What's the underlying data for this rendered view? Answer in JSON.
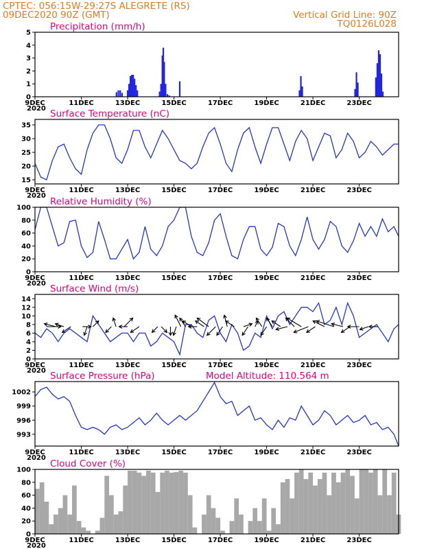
{
  "header": {
    "station": "CPTEC:  056:15W-29:27S  ALEGRETE (RS)",
    "run": "09DEC2020 90Z (GMT)",
    "vgrid": "Vertical Grid Line: 90Z",
    "code": "TQ0126L028"
  },
  "colors": {
    "header": "#e87a1e",
    "title": "#e6007e",
    "series": "#2233dd",
    "bars": "#1f24e8",
    "cloud": "#a8a8a8"
  },
  "x_tick_labels": [
    "9DEC",
    "11DEC",
    "13DEC",
    "15DEC",
    "17DEC",
    "19DEC",
    "21DEC",
    "23DEC"
  ],
  "x_stub_label": "2020",
  "chart_data": [
    {
      "type": "bar",
      "title": "Precipitation (mm/h)",
      "xlabel": "",
      "ylabel": "",
      "x_range_days": [
        9,
        24.7
      ],
      "ylim": [
        0,
        5
      ],
      "yticks": [
        0,
        1,
        2,
        3,
        4,
        5
      ],
      "points": [
        [
          12.52,
          0.35
        ],
        [
          12.6,
          0.5
        ],
        [
          12.68,
          0.5
        ],
        [
          12.76,
          0.3
        ],
        [
          13.0,
          0.5
        ],
        [
          13.06,
          1.0
        ],
        [
          13.12,
          1.6
        ],
        [
          13.18,
          1.7
        ],
        [
          13.24,
          1.7
        ],
        [
          13.3,
          1.4
        ],
        [
          13.36,
          0.9
        ],
        [
          13.42,
          0.5
        ],
        [
          14.38,
          0.4
        ],
        [
          14.44,
          1.0
        ],
        [
          14.5,
          3.2
        ],
        [
          14.54,
          3.8
        ],
        [
          14.58,
          2.7
        ],
        [
          14.64,
          1.0
        ],
        [
          14.72,
          0.2
        ],
        [
          14.8,
          0.1
        ],
        [
          15.25,
          1.2
        ],
        [
          20.42,
          0.5
        ],
        [
          20.48,
          1.6
        ],
        [
          20.54,
          0.8
        ],
        [
          22.82,
          0.6
        ],
        [
          22.88,
          1.9
        ],
        [
          22.94,
          1.1
        ],
        [
          23.72,
          1.5
        ],
        [
          23.78,
          2.6
        ],
        [
          23.84,
          3.6
        ],
        [
          23.9,
          3.3
        ],
        [
          23.96,
          1.8
        ],
        [
          24.02,
          0.4
        ]
      ]
    },
    {
      "type": "line",
      "title": "Surface Temperature (nC)",
      "xlabel": "",
      "ylabel": "",
      "x_range_days": [
        9,
        24.7
      ],
      "ylim": [
        13.5,
        37
      ],
      "yticks": [
        15,
        20,
        25,
        30,
        35
      ],
      "x": [
        9.0,
        9.25,
        9.5,
        9.75,
        10.0,
        10.25,
        10.5,
        10.75,
        11.0,
        11.25,
        11.5,
        11.75,
        12.0,
        12.25,
        12.5,
        12.75,
        13.0,
        13.25,
        13.5,
        13.75,
        14.0,
        14.25,
        14.5,
        14.75,
        15.0,
        15.25,
        15.5,
        15.75,
        16.0,
        16.25,
        16.5,
        16.75,
        17.0,
        17.25,
        17.5,
        17.75,
        18.0,
        18.25,
        18.5,
        18.75,
        19.0,
        19.25,
        19.5,
        19.75,
        20.0,
        20.25,
        20.5,
        20.75,
        21.0,
        21.25,
        21.5,
        21.75,
        22.0,
        22.25,
        22.5,
        22.75,
        23.0,
        23.25,
        23.5,
        23.75,
        24.0,
        24.25,
        24.5,
        24.7
      ],
      "y": [
        21,
        16,
        15,
        22,
        27,
        28,
        23,
        19,
        17,
        26,
        32,
        35,
        35,
        30,
        23,
        21,
        26,
        33,
        33,
        27,
        23,
        28,
        33,
        30,
        26,
        22,
        21,
        19,
        21,
        27,
        32,
        34,
        28,
        21,
        18,
        26,
        32,
        34,
        27,
        21,
        28,
        34,
        34,
        28,
        22,
        29,
        33,
        30,
        22,
        27,
        32,
        31,
        23,
        26,
        32,
        29,
        23,
        25,
        29,
        27,
        24,
        26,
        28,
        28
      ]
    },
    {
      "type": "line",
      "title": "Relative Humidity (%)",
      "xlabel": "",
      "ylabel": "",
      "x_range_days": [
        9,
        24.7
      ],
      "ylim": [
        0,
        100
      ],
      "yticks": [
        0,
        20,
        40,
        60,
        80,
        100
      ],
      "x": [
        9.0,
        9.25,
        9.5,
        9.75,
        10.0,
        10.25,
        10.5,
        10.75,
        11.0,
        11.25,
        11.5,
        11.75,
        12.0,
        12.25,
        12.5,
        12.75,
        13.0,
        13.25,
        13.5,
        13.75,
        14.0,
        14.25,
        14.5,
        14.75,
        15.0,
        15.25,
        15.5,
        15.75,
        16.0,
        16.25,
        16.5,
        16.75,
        17.0,
        17.25,
        17.5,
        17.75,
        18.0,
        18.25,
        18.5,
        18.75,
        19.0,
        19.25,
        19.5,
        19.75,
        20.0,
        20.25,
        20.5,
        20.75,
        21.0,
        21.25,
        21.5,
        21.75,
        22.0,
        22.25,
        22.5,
        22.75,
        23.0,
        23.25,
        23.5,
        23.75,
        24.0,
        24.25,
        24.5,
        24.7
      ],
      "y": [
        65,
        100,
        100,
        70,
        40,
        45,
        78,
        80,
        40,
        22,
        30,
        78,
        50,
        20,
        20,
        35,
        50,
        20,
        30,
        70,
        35,
        25,
        40,
        70,
        80,
        100,
        100,
        55,
        30,
        25,
        45,
        80,
        90,
        55,
        25,
        20,
        50,
        70,
        70,
        35,
        25,
        38,
        75,
        70,
        40,
        25,
        50,
        85,
        50,
        35,
        50,
        78,
        70,
        40,
        30,
        48,
        75,
        55,
        70,
        55,
        82,
        62,
        70,
        55
      ]
    },
    {
      "type": "line",
      "title": "Surface Wind (m/s)",
      "xlabel": "",
      "ylabel": "",
      "x_range_days": [
        9,
        24.7
      ],
      "ylim": [
        0,
        15
      ],
      "yticks": [
        0,
        2,
        4,
        6,
        8,
        10,
        12,
        14
      ],
      "x": [
        9.0,
        9.25,
        9.5,
        9.75,
        10.0,
        10.25,
        10.5,
        10.75,
        11.0,
        11.25,
        11.5,
        11.75,
        12.0,
        12.25,
        12.5,
        12.75,
        13.0,
        13.25,
        13.5,
        13.75,
        14.0,
        14.25,
        14.5,
        14.75,
        15.0,
        15.25,
        15.5,
        15.75,
        16.0,
        16.25,
        16.5,
        16.75,
        17.0,
        17.25,
        17.5,
        17.75,
        18.0,
        18.25,
        18.5,
        18.75,
        19.0,
        19.25,
        19.5,
        19.75,
        20.0,
        20.25,
        20.5,
        20.75,
        21.0,
        21.25,
        21.5,
        21.75,
        22.0,
        22.25,
        22.5,
        22.75,
        23.0,
        23.25,
        23.5,
        23.75,
        24.0,
        24.25,
        24.5,
        24.7
      ],
      "y": [
        6,
        5,
        7,
        6,
        4,
        6,
        7,
        6,
        5,
        4,
        10,
        8,
        6,
        4,
        5,
        6,
        6,
        4,
        6,
        6,
        3,
        4,
        6,
        5,
        4,
        1,
        8,
        8,
        6,
        5,
        9,
        10,
        6,
        4,
        8,
        6,
        2,
        3,
        6,
        5,
        10,
        7,
        10,
        11,
        8,
        10,
        12,
        12,
        11,
        13,
        8,
        9,
        12,
        8,
        13,
        10,
        5,
        6,
        7,
        8,
        6,
        4,
        7,
        8
      ]
    },
    {
      "type": "line",
      "title": "Surface Pressure (hPa)",
      "xlabel": "",
      "ylabel": "",
      "annotation": "Model Altitude: 110.564 m",
      "x_range_days": [
        9,
        24.7
      ],
      "ylim": [
        990.5,
        1004.2
      ],
      "yticks": [
        993,
        996,
        999,
        1002
      ],
      "x": [
        9.0,
        9.25,
        9.5,
        9.75,
        10.0,
        10.25,
        10.5,
        10.75,
        11.0,
        11.25,
        11.5,
        11.75,
        12.0,
        12.25,
        12.5,
        12.75,
        13.0,
        13.25,
        13.5,
        13.75,
        14.0,
        14.25,
        14.5,
        14.75,
        15.0,
        15.25,
        15.5,
        15.75,
        16.0,
        16.25,
        16.5,
        16.75,
        17.0,
        17.25,
        17.5,
        17.75,
        18.0,
        18.25,
        18.5,
        18.75,
        19.0,
        19.25,
        19.5,
        19.75,
        20.0,
        20.25,
        20.5,
        20.75,
        21.0,
        21.25,
        21.5,
        21.75,
        22.0,
        22.25,
        22.5,
        22.75,
        23.0,
        23.25,
        23.5,
        23.75,
        24.0,
        24.25,
        24.5,
        24.7
      ],
      "y": [
        1001,
        1002.5,
        1003,
        1001.5,
        1000.5,
        1001,
        1000,
        997,
        994.5,
        994,
        994.5,
        994,
        993,
        994.5,
        995,
        994,
        994.5,
        995.5,
        996.5,
        995,
        996,
        997.5,
        996,
        995,
        996,
        997,
        996,
        997,
        998,
        1000,
        1002,
        1004,
        1001,
        999.5,
        1000,
        997,
        998,
        999,
        996,
        996.5,
        995,
        994,
        996,
        994.5,
        996.5,
        996,
        999,
        997,
        995,
        996,
        998,
        997,
        995,
        996,
        997,
        995.5,
        996,
        997,
        995,
        995.5,
        994,
        994.5,
        993,
        990.5
      ]
    },
    {
      "type": "area",
      "title": "Cloud Cover (%)",
      "xlabel": "",
      "ylabel": "",
      "x_range_days": [
        9,
        24.7
      ],
      "ylim": [
        0,
        100
      ],
      "yticks": [
        0,
        20,
        40,
        60,
        80,
        100
      ],
      "x": [
        9.0,
        9.2,
        9.4,
        9.6,
        9.8,
        10.0,
        10.2,
        10.4,
        10.6,
        10.8,
        11.0,
        11.2,
        11.4,
        11.6,
        11.8,
        12.0,
        12.2,
        12.4,
        12.6,
        12.8,
        13.0,
        13.2,
        13.4,
        13.6,
        13.8,
        14.0,
        14.2,
        14.4,
        14.6,
        14.8,
        15.0,
        15.2,
        15.4,
        15.6,
        15.8,
        16.0,
        16.2,
        16.4,
        16.6,
        16.8,
        17.0,
        17.2,
        17.4,
        17.6,
        17.8,
        18.0,
        18.2,
        18.4,
        18.6,
        18.8,
        19.0,
        19.2,
        19.4,
        19.6,
        19.8,
        20.0,
        20.2,
        20.4,
        20.6,
        20.8,
        21.0,
        21.2,
        21.4,
        21.6,
        21.8,
        22.0,
        22.2,
        22.4,
        22.6,
        22.8,
        23.0,
        23.2,
        23.4,
        23.6,
        23.8,
        24.0,
        24.2,
        24.4,
        24.6
      ],
      "y": [
        70,
        80,
        50,
        15,
        30,
        40,
        60,
        30,
        75,
        20,
        10,
        5,
        0,
        5,
        25,
        90,
        60,
        30,
        35,
        75,
        98,
        98,
        95,
        90,
        98,
        95,
        65,
        95,
        98,
        95,
        96,
        98,
        95,
        60,
        10,
        0,
        30,
        60,
        40,
        25,
        5,
        0,
        20,
        55,
        30,
        0,
        20,
        40,
        20,
        55,
        5,
        40,
        15,
        80,
        85,
        55,
        95,
        100,
        85,
        95,
        75,
        85,
        95,
        60,
        95,
        80,
        95,
        100,
        90,
        55,
        100,
        100,
        95,
        100,
        60,
        100,
        60,
        95,
        30
      ]
    }
  ],
  "wind_vectors": [
    {
      "day": 9.5,
      "u": 5,
      "v": 0
    },
    {
      "day": 9.9,
      "u": -4,
      "v": 1
    },
    {
      "day": 10.25,
      "u": -3,
      "v": 1
    },
    {
      "day": 10.55,
      "u": -3,
      "v": -2
    },
    {
      "day": 11.05,
      "u": 3,
      "v": 0
    },
    {
      "day": 11.25,
      "u": -1,
      "v": -3
    },
    {
      "day": 11.5,
      "u": 2,
      "v": 2
    },
    {
      "day": 12.3,
      "u": -2,
      "v": -2
    },
    {
      "day": 12.5,
      "u": -1,
      "v": 3
    },
    {
      "day": 12.85,
      "u": 3,
      "v": 3
    },
    {
      "day": 13.0,
      "u": -3,
      "v": 0
    },
    {
      "day": 13.5,
      "u": -3,
      "v": -2
    },
    {
      "day": 14.3,
      "u": -2,
      "v": -2
    },
    {
      "day": 14.45,
      "u": 2,
      "v": -2
    },
    {
      "day": 14.85,
      "u": 0,
      "v": -3
    },
    {
      "day": 15.1,
      "u": -1,
      "v": -3
    },
    {
      "day": 15.3,
      "u": -2,
      "v": 4
    },
    {
      "day": 15.5,
      "u": -2,
      "v": 3
    },
    {
      "day": 15.75,
      "u": -3,
      "v": 2
    },
    {
      "day": 16.0,
      "u": -3,
      "v": 0
    },
    {
      "day": 16.3,
      "u": -3,
      "v": 2
    },
    {
      "day": 16.5,
      "u": -4,
      "v": 3
    },
    {
      "day": 16.8,
      "u": -3,
      "v": -3
    },
    {
      "day": 17.1,
      "u": -2,
      "v": -3
    },
    {
      "day": 17.3,
      "u": -1,
      "v": 4
    },
    {
      "day": 17.6,
      "u": -3,
      "v": 2
    },
    {
      "day": 18.0,
      "u": 3,
      "v": 1
    },
    {
      "day": 18.2,
      "u": -2,
      "v": -3
    },
    {
      "day": 18.5,
      "u": 1,
      "v": 2
    },
    {
      "day": 18.8,
      "u": -2,
      "v": 3
    },
    {
      "day": 19.0,
      "u": -2,
      "v": -3
    },
    {
      "day": 19.25,
      "u": -2,
      "v": 3
    },
    {
      "day": 19.6,
      "u": -3,
      "v": 2
    },
    {
      "day": 19.9,
      "u": -4,
      "v": -1
    },
    {
      "day": 20.2,
      "u": -3,
      "v": 3
    },
    {
      "day": 20.5,
      "u": -5,
      "v": 3
    },
    {
      "day": 20.8,
      "u": -5,
      "v": -2
    },
    {
      "day": 21.1,
      "u": -3,
      "v": -2
    },
    {
      "day": 21.5,
      "u": -4,
      "v": 2
    },
    {
      "day": 21.9,
      "u": -6,
      "v": 2
    },
    {
      "day": 22.3,
      "u": -4,
      "v": 1
    },
    {
      "day": 22.6,
      "u": -3,
      "v": -2
    },
    {
      "day": 23.0,
      "u": -4,
      "v": 0
    },
    {
      "day": 23.4,
      "u": -3,
      "v": -1
    },
    {
      "day": 23.8,
      "u": -3,
      "v": 0
    }
  ]
}
